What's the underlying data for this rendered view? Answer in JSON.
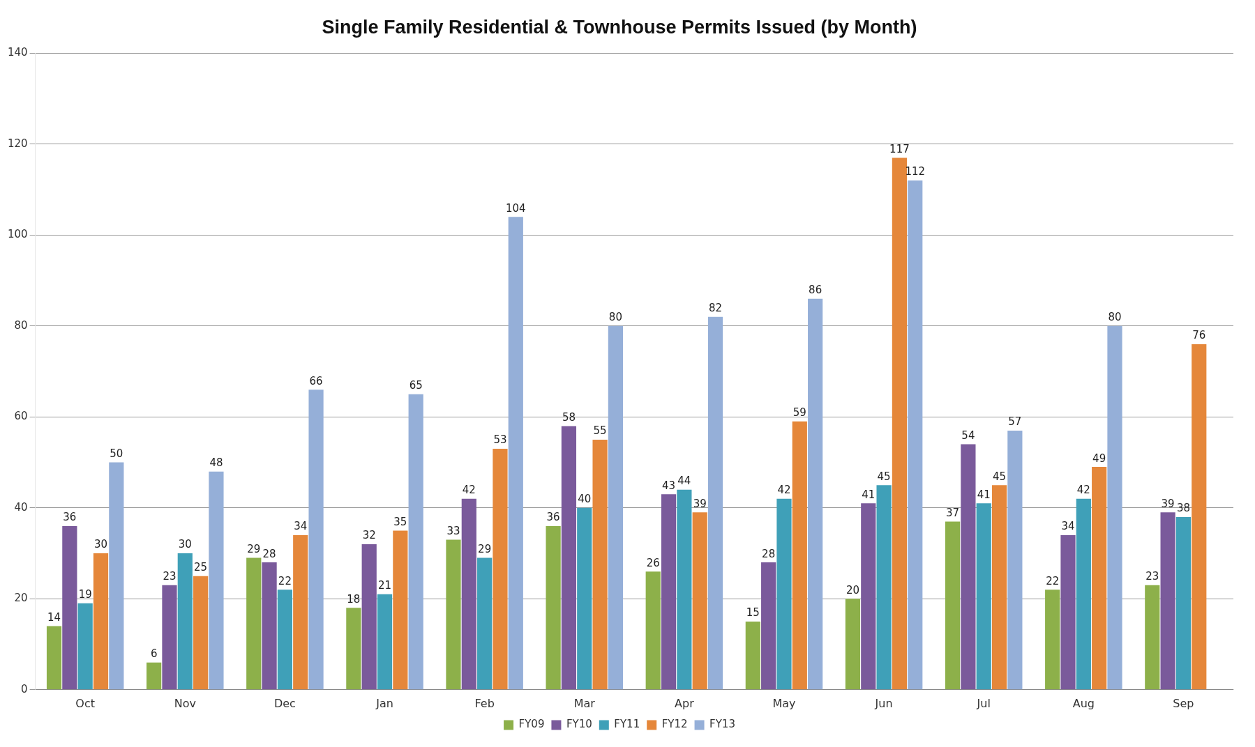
{
  "chart_data": {
    "type": "bar",
    "title": "Single Family Residential & Townhouse Permits Issued (by Month)",
    "categories": [
      "Oct",
      "Nov",
      "Dec",
      "Jan",
      "Feb",
      "Mar",
      "Apr",
      "May",
      "Jun",
      "Jul",
      "Aug",
      "Sep"
    ],
    "series": [
      {
        "name": "FY09",
        "color": "#8db04a",
        "values": [
          14,
          6,
          29,
          18,
          33,
          36,
          26,
          15,
          20,
          37,
          22,
          23
        ]
      },
      {
        "name": "FY10",
        "color": "#7a5a9b",
        "values": [
          36,
          23,
          28,
          32,
          42,
          58,
          43,
          28,
          41,
          54,
          34,
          39
        ]
      },
      {
        "name": "FY11",
        "color": "#3fa0b8",
        "values": [
          19,
          30,
          22,
          21,
          29,
          40,
          44,
          42,
          45,
          41,
          42,
          38
        ]
      },
      {
        "name": "FY12",
        "color": "#e5873a",
        "values": [
          30,
          25,
          34,
          35,
          53,
          55,
          39,
          59,
          117,
          45,
          49,
          76
        ]
      },
      {
        "name": "FY13",
        "color": "#95afd8",
        "values": [
          50,
          48,
          66,
          65,
          104,
          80,
          82,
          86,
          112,
          57,
          80,
          null
        ]
      }
    ],
    "ylim": [
      0,
      140
    ],
    "yticks": [
      0,
      20,
      40,
      60,
      80,
      100,
      120,
      140
    ],
    "grid": "y",
    "legend": "bottom",
    "data_labels": true
  }
}
